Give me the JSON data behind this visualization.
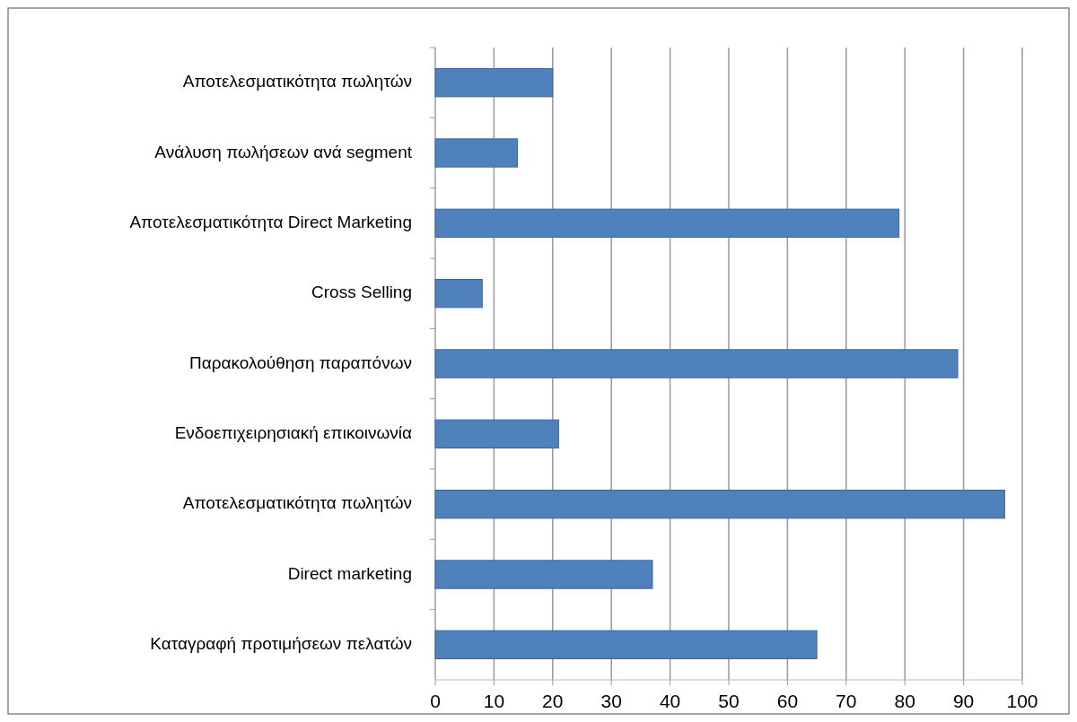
{
  "chart_data": {
    "type": "bar",
    "orientation": "horizontal",
    "categories": [
      "Αποτελεσματικότητα πωλητών",
      "Ανάλυση πωλήσεων ανά segment",
      "Αποτελεσματικότητα Direct Marketing",
      "Cross Selling",
      "Παρακολούθηση παραπόνων",
      "Ενδοεπιχειρησιακή επικοινωνία",
      "Αποτελεσματικότητα πωλητών",
      "Direct marketing",
      "Καταγραφή προτιμήσεων πελατών"
    ],
    "values": [
      20,
      14,
      79,
      8,
      89,
      21,
      97,
      37,
      65
    ],
    "color": "#4f81bd",
    "xlim": [
      0,
      100
    ],
    "xticks": [
      0,
      10,
      20,
      30,
      40,
      50,
      60,
      70,
      80,
      90,
      100
    ],
    "grid": "x"
  }
}
